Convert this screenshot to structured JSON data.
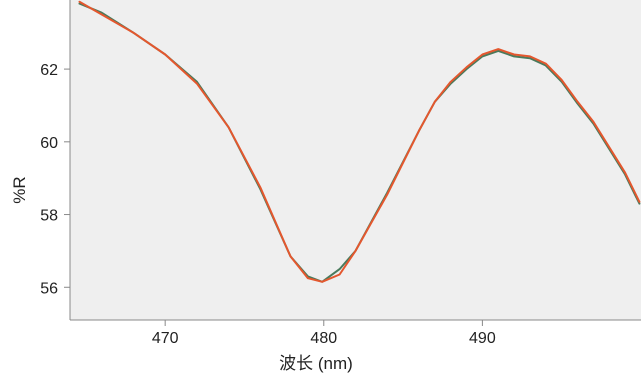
{
  "chart_data": {
    "type": "line",
    "xlabel": "波长 (nm)",
    "ylabel": "%R",
    "xlim": [
      464,
      500
    ],
    "ylim": [
      55.1,
      63.9
    ],
    "x_ticks": [
      470,
      480,
      490
    ],
    "y_ticks": [
      56,
      58,
      60,
      62
    ],
    "grid": false,
    "plot_background": "#efefef",
    "series": [
      {
        "color": "#4a7a5c",
        "x": [
          464.6,
          466,
          468,
          470,
          472,
          474,
          476,
          477.9,
          479,
          479.9,
          481,
          482,
          484,
          486,
          487,
          488,
          489,
          490,
          491,
          492,
          493,
          494,
          495,
          496,
          497,
          498,
          499,
          499.9
        ],
        "y": [
          63.8,
          63.55,
          63.0,
          62.4,
          61.65,
          60.4,
          58.7,
          56.85,
          56.3,
          56.15,
          56.5,
          57.0,
          58.6,
          60.3,
          61.1,
          61.6,
          62.0,
          62.35,
          62.5,
          62.35,
          62.3,
          62.1,
          61.65,
          61.05,
          60.5,
          59.8,
          59.1,
          58.3
        ]
      },
      {
        "color": "#e4572e",
        "x": [
          464.6,
          466,
          468,
          470,
          472,
          474,
          476,
          477.9,
          479,
          479.9,
          481,
          482,
          484,
          486,
          487,
          488,
          489,
          490,
          491,
          492,
          493,
          494,
          495,
          496,
          497,
          498,
          499,
          499.9
        ],
        "y": [
          63.85,
          63.5,
          63.0,
          62.4,
          61.6,
          60.4,
          58.75,
          56.85,
          56.25,
          56.15,
          56.35,
          57.0,
          58.55,
          60.3,
          61.1,
          61.65,
          62.05,
          62.4,
          62.55,
          62.4,
          62.35,
          62.15,
          61.7,
          61.1,
          60.55,
          59.85,
          59.15,
          58.35
        ]
      }
    ]
  }
}
